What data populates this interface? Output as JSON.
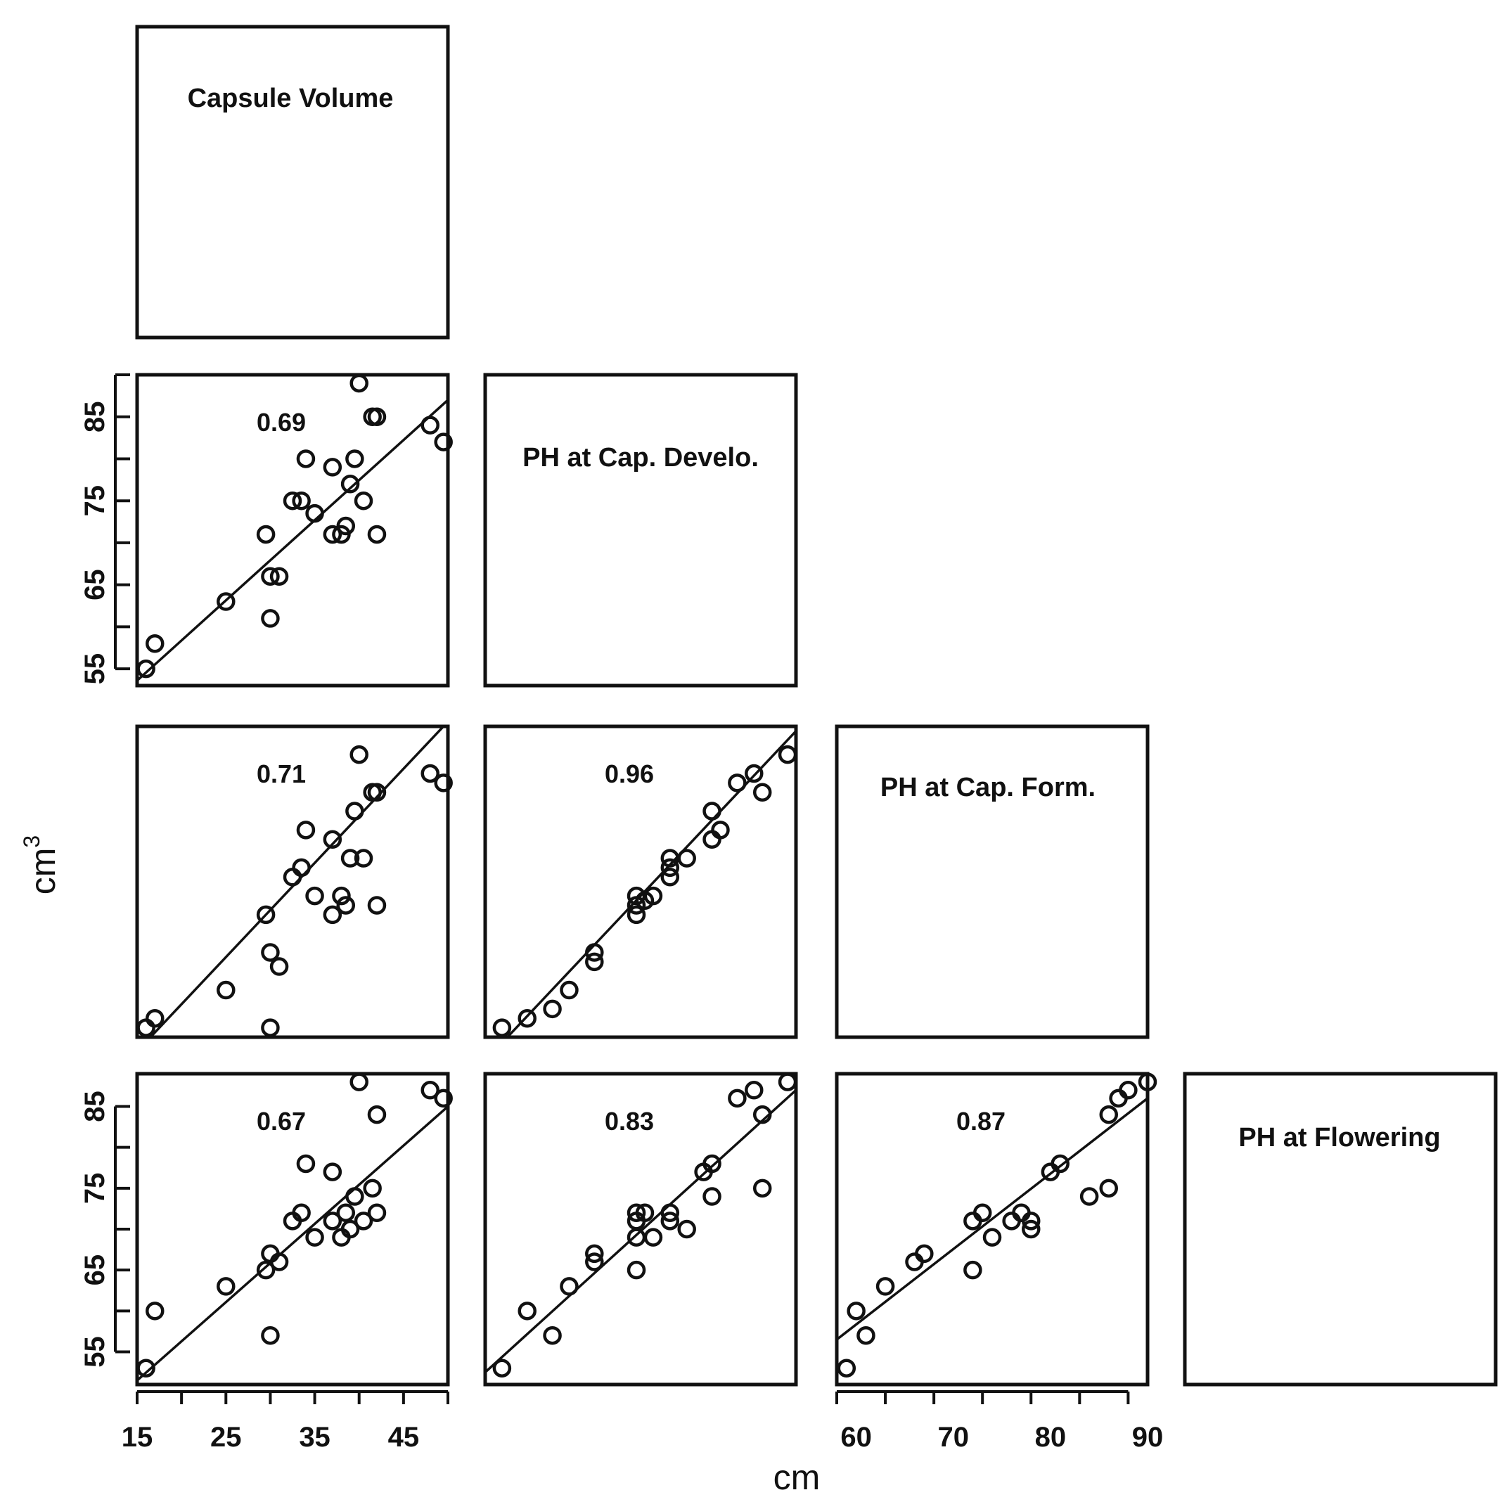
{
  "figure": {
    "y_axis_title": "cm",
    "y_axis_title_sup": "3",
    "x_axis_title": "cm"
  },
  "chart_data": {
    "type": "scatter",
    "variables": [
      "Capsule Volume",
      "PH at Cap. Develo.",
      "PH at Cap. Form.",
      "PH at Flowering"
    ],
    "x_ticks_col1": [
      "15",
      "25",
      "35",
      "45"
    ],
    "x_ticks_col3": [
      "60",
      "70",
      "80",
      "90"
    ],
    "y_ticks": [
      "55",
      "65",
      "75",
      "85"
    ],
    "panels": [
      {
        "row": 1,
        "col": 0,
        "x_var": "Capsule Volume",
        "y_var": "PH at Cap. Develo.",
        "r": "0.69",
        "xlim": [
          15,
          50
        ],
        "ylim": [
          53,
          90
        ],
        "fit": [
          [
            15,
            53.6
          ],
          [
            50,
            87.0
          ]
        ],
        "points": [
          [
            16,
            55
          ],
          [
            17,
            58
          ],
          [
            25,
            63
          ],
          [
            29.5,
            71
          ],
          [
            30,
            61
          ],
          [
            30,
            66
          ],
          [
            31,
            66
          ],
          [
            32.5,
            75
          ],
          [
            33.5,
            75
          ],
          [
            34,
            80
          ],
          [
            35,
            73.5
          ],
          [
            37,
            71
          ],
          [
            37,
            79
          ],
          [
            38,
            71
          ],
          [
            38.5,
            72
          ],
          [
            39,
            77
          ],
          [
            39.5,
            80
          ],
          [
            40,
            89
          ],
          [
            40.5,
            75
          ],
          [
            41.5,
            85
          ],
          [
            42,
            85
          ],
          [
            42,
            71
          ],
          [
            48,
            84
          ],
          [
            49.5,
            82
          ]
        ]
      },
      {
        "row": 2,
        "col": 0,
        "x_var": "Capsule Volume",
        "y_var": "PH at Cap. Form.",
        "r": "0.71",
        "xlim": [
          15,
          50
        ],
        "ylim": [
          57,
          90
        ],
        "fit": [
          [
            15,
            55.5
          ],
          [
            50,
            90.5
          ]
        ],
        "points": [
          [
            16,
            58
          ],
          [
            17,
            59
          ],
          [
            25,
            62
          ],
          [
            29.5,
            70
          ],
          [
            30,
            66
          ],
          [
            30,
            58
          ],
          [
            31,
            64.5
          ],
          [
            32.5,
            74
          ],
          [
            33.5,
            75
          ],
          [
            34,
            79
          ],
          [
            35,
            72
          ],
          [
            37,
            70
          ],
          [
            37,
            78
          ],
          [
            38,
            72
          ],
          [
            38.5,
            71
          ],
          [
            39,
            76
          ],
          [
            39.5,
            81
          ],
          [
            40,
            87
          ],
          [
            40.5,
            76
          ],
          [
            41.5,
            83
          ],
          [
            42,
            83
          ],
          [
            42,
            71
          ],
          [
            48,
            85
          ],
          [
            49.5,
            84
          ]
        ]
      },
      {
        "row": 2,
        "col": 1,
        "x_var": "PH at Cap. Develo.",
        "y_var": "PH at Cap. Form.",
        "r": "0.96",
        "xlim": [
          53,
          90
        ],
        "ylim": [
          57,
          90
        ],
        "fit": [
          [
            53,
            54.5
          ],
          [
            90,
            89.5
          ]
        ],
        "points": [
          [
            55,
            58
          ],
          [
            58,
            59
          ],
          [
            61,
            60
          ],
          [
            63,
            62
          ],
          [
            66,
            65
          ],
          [
            66,
            66
          ],
          [
            71,
            70
          ],
          [
            71,
            71
          ],
          [
            71,
            72
          ],
          [
            72,
            71.5
          ],
          [
            73,
            72
          ],
          [
            75,
            74
          ],
          [
            75,
            75
          ],
          [
            75,
            76
          ],
          [
            77,
            76
          ],
          [
            80,
            78
          ],
          [
            80,
            81
          ],
          [
            81,
            79
          ],
          [
            83,
            84
          ],
          [
            85,
            85
          ],
          [
            86,
            83
          ],
          [
            89,
            87
          ]
        ]
      },
      {
        "row": 3,
        "col": 0,
        "x_var": "Capsule Volume",
        "y_var": "PH at Flowering",
        "r": "0.67",
        "xlim": [
          15,
          50
        ],
        "ylim": [
          51,
          89
        ],
        "fit": [
          [
            15,
            51.5
          ],
          [
            50,
            85.0
          ]
        ],
        "points": [
          [
            16,
            53
          ],
          [
            17,
            60
          ],
          [
            25,
            63
          ],
          [
            29.5,
            65
          ],
          [
            30,
            67
          ],
          [
            30,
            57
          ],
          [
            31,
            66
          ],
          [
            32.5,
            71
          ],
          [
            33.5,
            72
          ],
          [
            34,
            78
          ],
          [
            35,
            69
          ],
          [
            37,
            71
          ],
          [
            37,
            77
          ],
          [
            38,
            69
          ],
          [
            38.5,
            72
          ],
          [
            39,
            70
          ],
          [
            39.5,
            74
          ],
          [
            40,
            88
          ],
          [
            40.5,
            71
          ],
          [
            41.5,
            75
          ],
          [
            42,
            84
          ],
          [
            42,
            72
          ],
          [
            48,
            87
          ],
          [
            49.5,
            86
          ]
        ]
      },
      {
        "row": 3,
        "col": 1,
        "x_var": "PH at Cap. Develo.",
        "y_var": "PH at Flowering",
        "r": "0.83",
        "xlim": [
          53,
          90
        ],
        "ylim": [
          51,
          89
        ],
        "fit": [
          [
            53,
            52.5
          ],
          [
            90,
            87.0
          ]
        ],
        "points": [
          [
            55,
            53
          ],
          [
            58,
            60
          ],
          [
            61,
            57
          ],
          [
            63,
            63
          ],
          [
            66,
            66
          ],
          [
            66,
            67
          ],
          [
            71,
            72
          ],
          [
            71,
            71
          ],
          [
            71,
            65
          ],
          [
            71,
            69
          ],
          [
            72,
            72
          ],
          [
            73,
            69
          ],
          [
            75,
            72
          ],
          [
            75,
            71
          ],
          [
            77,
            70
          ],
          [
            79,
            77
          ],
          [
            80,
            78
          ],
          [
            80,
            74
          ],
          [
            83,
            86
          ],
          [
            85,
            87
          ],
          [
            86,
            84
          ],
          [
            86,
            75
          ],
          [
            89,
            88
          ]
        ]
      },
      {
        "row": 3,
        "col": 2,
        "x_var": "PH at Cap. Form.",
        "y_var": "PH at Flowering",
        "r": "0.87",
        "xlim": [
          58,
          90
        ],
        "ylim": [
          51,
          89
        ],
        "fit": [
          [
            58,
            56.5
          ],
          [
            90,
            86.0
          ]
        ],
        "points": [
          [
            59,
            53
          ],
          [
            60,
            60
          ],
          [
            61,
            57
          ],
          [
            63,
            63
          ],
          [
            66,
            66
          ],
          [
            67,
            67
          ],
          [
            72,
            71
          ],
          [
            72,
            65
          ],
          [
            73,
            72
          ],
          [
            74,
            69
          ],
          [
            76,
            71
          ],
          [
            77,
            72
          ],
          [
            78,
            71
          ],
          [
            78,
            70
          ],
          [
            80,
            77
          ],
          [
            81,
            78
          ],
          [
            84,
            74
          ],
          [
            86,
            75
          ],
          [
            86,
            84
          ],
          [
            87,
            86
          ],
          [
            88,
            87
          ],
          [
            90,
            88
          ]
        ]
      }
    ]
  }
}
